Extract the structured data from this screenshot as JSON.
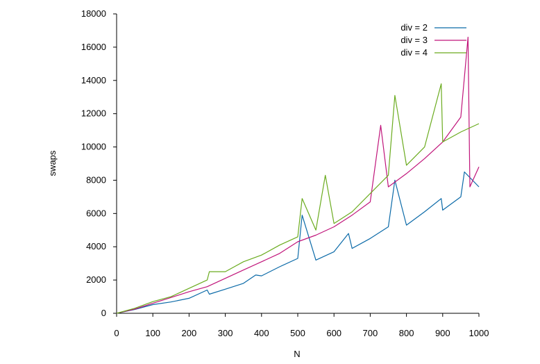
{
  "chart_data": {
    "type": "line",
    "xlabel": "N",
    "ylabel": "swaps",
    "xlim": [
      0,
      1000
    ],
    "ylim": [
      0,
      18000
    ],
    "xticks": [
      0,
      100,
      200,
      300,
      400,
      500,
      600,
      700,
      800,
      900,
      1000
    ],
    "yticks": [
      0,
      2000,
      4000,
      6000,
      8000,
      10000,
      12000,
      14000,
      16000,
      18000
    ],
    "grid": false,
    "legend_position": "top-right",
    "series": [
      {
        "name": "div = 2",
        "color": "#0b6aa8",
        "x": [
          0,
          50,
          100,
          150,
          200,
          250,
          256,
          300,
          350,
          384,
          400,
          450,
          500,
          512,
          550,
          600,
          640,
          650,
          700,
          750,
          768,
          800,
          850,
          896,
          900,
          950,
          960,
          1000
        ],
        "y": [
          0,
          230,
          520,
          680,
          900,
          1400,
          1150,
          1450,
          1800,
          2300,
          2250,
          2800,
          3300,
          5900,
          3200,
          3700,
          4800,
          3900,
          4500,
          5200,
          8000,
          5300,
          6100,
          6900,
          6200,
          7000,
          8500,
          7600
        ]
      },
      {
        "name": "div = 3",
        "color": "#c0147a",
        "x": [
          0,
          50,
          100,
          150,
          200,
          250,
          300,
          350,
          400,
          450,
          500,
          550,
          600,
          650,
          700,
          729,
          750,
          800,
          850,
          900,
          950,
          970,
          975,
          1000
        ],
        "y": [
          0,
          250,
          600,
          950,
          1300,
          1600,
          2100,
          2600,
          3100,
          3600,
          4300,
          4700,
          5200,
          5900,
          6700,
          11300,
          7600,
          8400,
          9300,
          10300,
          11800,
          16600,
          7600,
          8800
        ]
      },
      {
        "name": "div = 4",
        "color": "#6aab1e",
        "x": [
          0,
          50,
          100,
          150,
          200,
          250,
          256,
          300,
          350,
          400,
          450,
          500,
          512,
          550,
          576,
          600,
          650,
          700,
          750,
          768,
          800,
          850,
          896,
          900,
          950,
          1000
        ],
        "y": [
          0,
          300,
          700,
          1000,
          1500,
          2000,
          2500,
          2500,
          3100,
          3500,
          4100,
          4600,
          6900,
          5000,
          8300,
          5400,
          6100,
          7200,
          8300,
          13100,
          8900,
          10000,
          13800,
          10300,
          10900,
          11400
        ]
      }
    ]
  }
}
